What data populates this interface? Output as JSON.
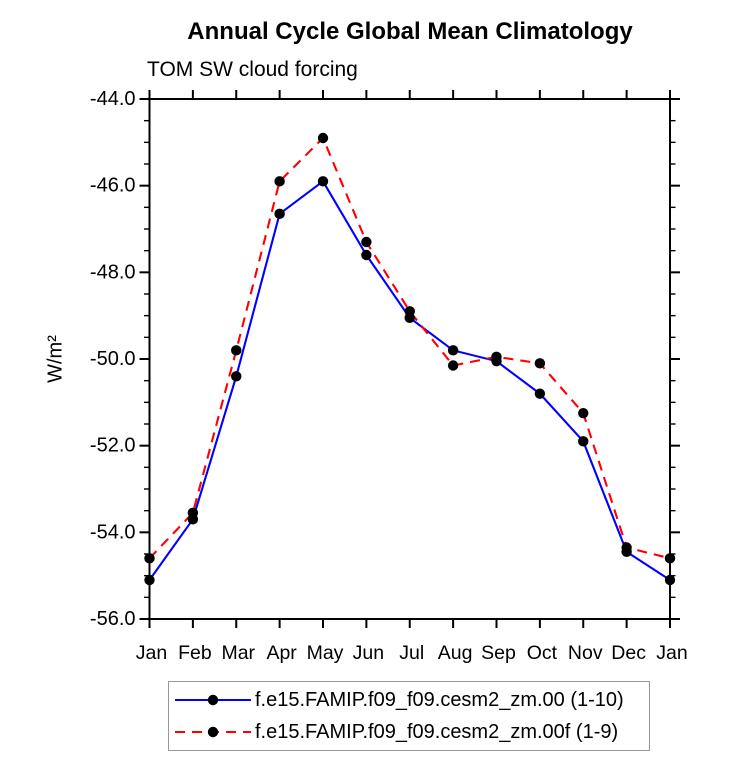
{
  "chart_data": {
    "type": "line",
    "title": "Annual Cycle Global Mean Climatology",
    "subtitle": "TOM SW cloud forcing",
    "ylabel": "W/m²",
    "xlabel": "",
    "categories": [
      "Jan",
      "Feb",
      "Mar",
      "Apr",
      "May",
      "Jun",
      "Jul",
      "Aug",
      "Sep",
      "Oct",
      "Nov",
      "Dec",
      "Jan"
    ],
    "ylim": [
      -56.0,
      -44.0
    ],
    "yticks": [
      {
        "value": -44.0,
        "label": "-44.0"
      },
      {
        "value": -46.0,
        "label": "-46.0"
      },
      {
        "value": -48.0,
        "label": "-48.0"
      },
      {
        "value": -50.0,
        "label": "-50.0"
      },
      {
        "value": -52.0,
        "label": "-52.0"
      },
      {
        "value": -54.0,
        "label": "-54.0"
      },
      {
        "value": -56.0,
        "label": "-56.0"
      }
    ],
    "minor_tick_step": 0.5,
    "grid": false,
    "legend_position": "bottom",
    "marker": "black-filled-circle",
    "marker_color": "#000000",
    "axis_color": "#000000",
    "series": [
      {
        "name": "f.e15.FAMIP.f09_f09.cesm2_zm.00 (1-10)",
        "color": "#0000ff",
        "style": "solid",
        "values": [
          -55.1,
          -53.7,
          -50.4,
          -46.65,
          -45.9,
          -47.6,
          -49.05,
          -49.8,
          -50.05,
          -50.8,
          -51.9,
          -54.45,
          -55.1
        ]
      },
      {
        "name": "f.e15.FAMIP.f09_f09.cesm2_zm.00f (1-9)",
        "color": "#ff0000",
        "style": "dashed",
        "values": [
          -54.6,
          -53.55,
          -49.8,
          -45.9,
          -44.9,
          -47.3,
          -48.9,
          -50.15,
          -49.95,
          -50.1,
          -51.25,
          -54.35,
          -54.6
        ]
      }
    ]
  }
}
